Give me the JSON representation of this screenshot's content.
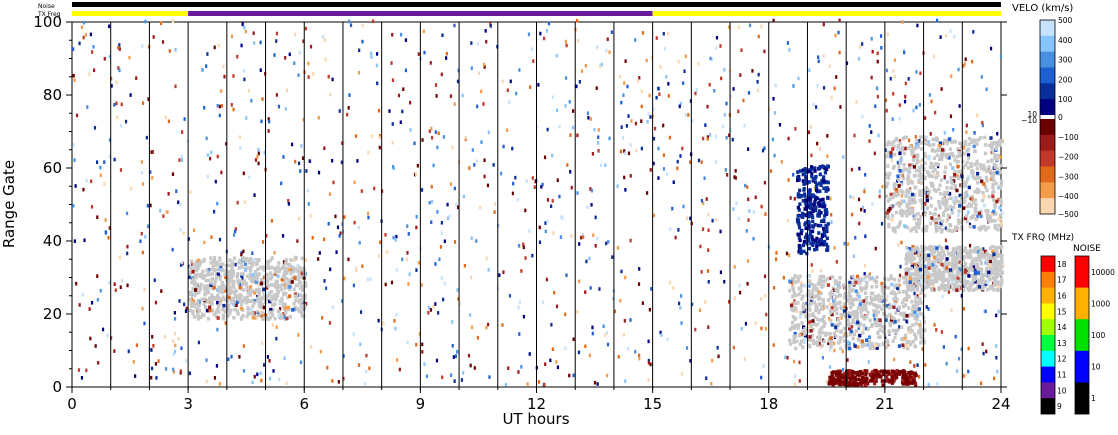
{
  "chart_data": {
    "type": "heatmap",
    "xlabel": "UT hours",
    "ylabel": "Range Gate",
    "xlim": [
      0,
      24
    ],
    "ylim": [
      0,
      100
    ],
    "x_ticks": [
      "0",
      "3",
      "6",
      "9",
      "12",
      "15",
      "18",
      "21",
      "24"
    ],
    "y_ticks": [
      "0",
      "20",
      "40",
      "60",
      "80",
      "100"
    ],
    "scan_boundaries_ut": [
      1.0,
      2.0,
      3.0,
      4.0,
      5.0,
      6.0,
      7.0,
      8.0,
      9.0,
      10.0,
      11.0,
      12.0,
      13.0,
      14.0,
      15.0,
      16.0,
      17.0,
      18.0,
      19.0,
      20.0,
      21.0,
      22.0,
      23.0
    ],
    "noise_label": "Noise",
    "txfreq_label": "TX Freq",
    "tx_freq_periods": [
      {
        "start": 0,
        "end": 3,
        "color": "#ffff00"
      },
      {
        "start": 3,
        "end": 15,
        "color": "#6a1b9a"
      },
      {
        "start": 15,
        "end": 24,
        "color": "#ffff00"
      }
    ],
    "velocity_colorbar": {
      "title": "VELO (km/s)",
      "ticks": [
        "500",
        "400",
        "300",
        "200",
        "100",
        "10",
        "0",
        "−10",
        "−100",
        "−200",
        "−300",
        "−400",
        "−500"
      ],
      "colors": [
        "#c6e2ff",
        "#87c3ff",
        "#4a90e2",
        "#1f5fd1",
        "#0a2e99",
        "#000080",
        "#6b0000",
        "#9b1b1b",
        "#c0392b",
        "#e06a1a",
        "#f39c4a",
        "#fad7b0"
      ]
    },
    "txfreq_colorbar": {
      "title": "TX FRQ (MHz)",
      "ticks": [
        "18",
        "17",
        "16",
        "15",
        "14",
        "13",
        "12",
        "11",
        "10",
        "9"
      ],
      "colors": [
        "#ff0000",
        "#ff7f00",
        "#ffb000",
        "#ffff00",
        "#a0ff00",
        "#00ff40",
        "#00ffff",
        "#0000ff",
        "#6a1b9a",
        "#000000"
      ]
    },
    "noise_colorbar": {
      "title": "NOISE",
      "ticks": [
        "10000",
        "1000",
        "100",
        "10",
        "1"
      ],
      "colors": [
        "#ff0000",
        "#ffb000",
        "#00e000",
        "#0000ff",
        "#000000"
      ]
    },
    "ground_scatter_color": "#c8c8c8",
    "regions": [
      {
        "name": "ground-scatter-3-6UT",
        "x": [
          3.0,
          6.0
        ],
        "y": [
          18,
          35
        ],
        "kind": "ground"
      },
      {
        "name": "ground-scatter-18-22UT",
        "x": [
          18.5,
          22.0
        ],
        "y": [
          10,
          30
        ],
        "kind": "ground"
      },
      {
        "name": "ground-scatter-21-24UT",
        "x": [
          21.0,
          24.0
        ],
        "y": [
          42,
          68
        ],
        "kind": "ground"
      },
      {
        "name": "ground-scatter-22-24UT-band",
        "x": [
          21.5,
          24.0
        ],
        "y": [
          26,
          38
        ],
        "kind": "ground"
      },
      {
        "name": "negative-velocity-20-22UT",
        "x": [
          19.5,
          21.8
        ],
        "y": [
          0,
          4
        ],
        "kind": "negative"
      },
      {
        "name": "positive-velocity-19UT",
        "x": [
          18.7,
          19.5
        ],
        "y": [
          36,
          60
        ],
        "kind": "positive"
      }
    ]
  }
}
